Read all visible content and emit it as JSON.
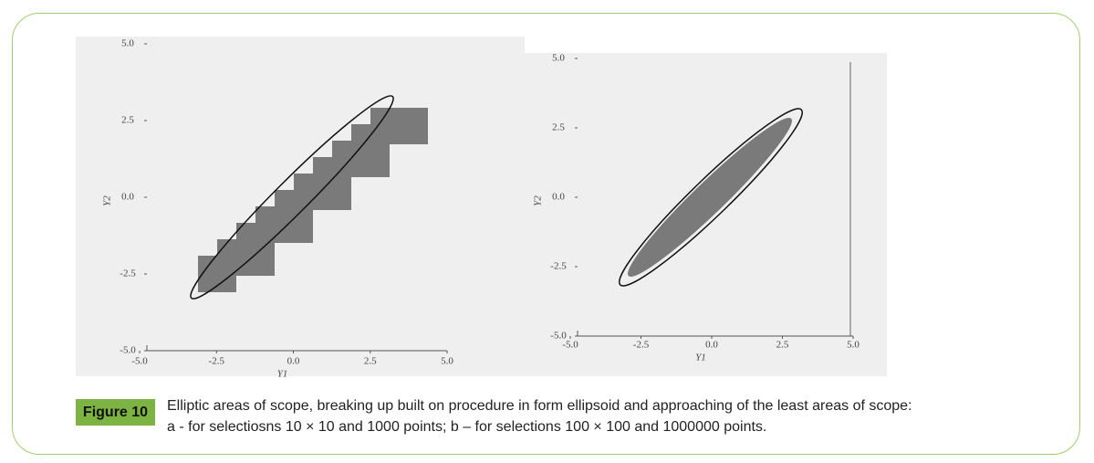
{
  "chart_data": [
    {
      "type": "scatter",
      "x_label": "Y1",
      "y_label": "Y2",
      "xlim": [
        -5,
        5
      ],
      "ylim": [
        -5,
        5
      ],
      "xticks": [
        {
          "value": -5,
          "label": "-5.0"
        },
        {
          "value": -2.5,
          "label": "-2.5"
        },
        {
          "value": 0,
          "label": "0.0"
        },
        {
          "value": 2.5,
          "label": "2.5"
        },
        {
          "value": 5,
          "label": "5.0"
        }
      ],
      "yticks": [
        {
          "value": -5,
          "label": "-5.0"
        },
        {
          "value": -2.5,
          "label": "-2.5"
        },
        {
          "value": 0,
          "label": "0.0"
        },
        {
          "value": 2.5,
          "label": "2.5"
        },
        {
          "value": 5,
          "label": "5.0"
        }
      ]
    },
    {
      "type": "scatter",
      "x_label": "Y1",
      "y_label": "Y2",
      "xlim": [
        -5,
        5
      ],
      "ylim": [
        -5,
        5
      ],
      "xticks": [
        {
          "value": -5,
          "label": "-5.0"
        },
        {
          "value": -2.5,
          "label": "-2.5"
        },
        {
          "value": 0,
          "label": "0.0"
        },
        {
          "value": 2.5,
          "label": "2.5"
        },
        {
          "value": 5,
          "label": "5.0"
        }
      ],
      "yticks": [
        {
          "value": -5,
          "label": "-5.0"
        },
        {
          "value": -2.5,
          "label": "-2.5"
        },
        {
          "value": 0,
          "label": "0.0"
        },
        {
          "value": 2.5,
          "label": "2.5"
        },
        {
          "value": 5,
          "label": "5.0"
        }
      ]
    }
  ],
  "caption": {
    "label": "Figure 10",
    "lines": [
      "Elliptic areas of scope, breaking up built on procedure in form ellipsoid and approaching of the least areas of scope:",
      "a - for selectiosns 10 × 10 and 1000 points; b – for selections 100 × 100 and 1000000 points."
    ]
  }
}
